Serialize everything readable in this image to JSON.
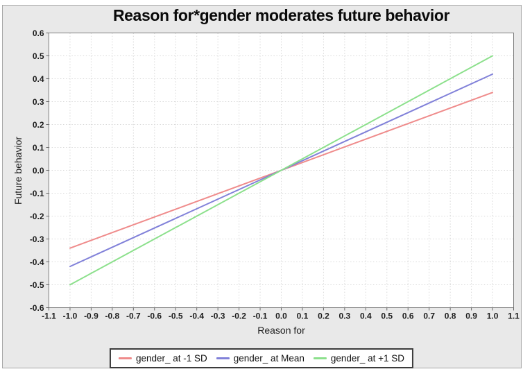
{
  "window": {
    "background": "#ffffff",
    "panel_background": "#e9e9e9",
    "panel_border": "#a6a6a6"
  },
  "chart_data": {
    "type": "line",
    "title": "Reason for*gender moderates future behavior",
    "xlabel": "Reason for",
    "ylabel": "Future behavior",
    "xlim": [
      -1.1,
      1.1
    ],
    "ylim": [
      -0.6,
      0.6
    ],
    "grid": "dotted",
    "legend_position": "bottom",
    "plot_background": "#ffffff",
    "grid_color": "#d8d8d8",
    "plot_border_color": "#7d7d7d",
    "tick_color": "#666666",
    "x_ticks": [
      "-1.1",
      "-1.0",
      "-0.9",
      "-0.8",
      "-0.7",
      "-0.6",
      "-0.5",
      "-0.4",
      "-0.3",
      "-0.2",
      "-0.1",
      "0.0",
      "0.1",
      "0.2",
      "0.3",
      "0.4",
      "0.5",
      "0.6",
      "0.7",
      "0.8",
      "0.9",
      "1.0",
      "1.1"
    ],
    "y_ticks": [
      "0.6",
      "0.5",
      "0.4",
      "0.3",
      "0.2",
      "0.1",
      "0.0",
      "-0.1",
      "-0.2",
      "-0.3",
      "-0.4",
      "-0.5",
      "-0.6"
    ],
    "series": [
      {
        "name": "gender_ at -1 SD",
        "color": "#ef8b8b",
        "points": [
          [
            -1.0,
            -0.34
          ],
          [
            1.0,
            0.34
          ]
        ]
      },
      {
        "name": "gender_ at Mean",
        "color": "#8181d9",
        "points": [
          [
            -1.0,
            -0.42
          ],
          [
            1.0,
            0.42
          ]
        ]
      },
      {
        "name": "gender_ at +1 SD",
        "color": "#8ce08c",
        "points": [
          [
            -1.0,
            -0.5
          ],
          [
            1.0,
            0.5
          ]
        ]
      }
    ]
  }
}
